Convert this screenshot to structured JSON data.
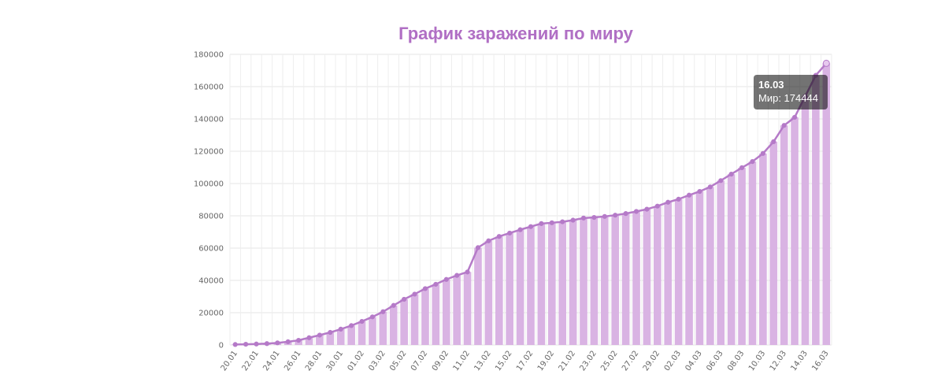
{
  "title": "График заражений по миру",
  "tooltip": {
    "date": "16.03",
    "value": "Мир: 174444"
  },
  "colors": {
    "bar": "#d9b3e3",
    "line": "#b57ac8",
    "title": "#b06fc4",
    "grid": "#e5e5e5"
  },
  "chart_data": {
    "type": "bar+line",
    "title": "График заражений по миру",
    "ylim": [
      0,
      180000
    ],
    "yticks": [
      0,
      20000,
      40000,
      60000,
      80000,
      100000,
      120000,
      140000,
      160000,
      180000
    ],
    "x_tick_labels": [
      "20.01",
      "22.01",
      "24.01",
      "26.01",
      "28.01",
      "30.01",
      "01.02",
      "03.02",
      "05.02",
      "07.02",
      "09.02",
      "11.02",
      "13.02",
      "15.02",
      "17.02",
      "19.02",
      "21.02",
      "23.02",
      "25.02",
      "27.02",
      "29.02",
      "02.03",
      "04.03",
      "06.03",
      "08.03",
      "10.03",
      "12.03",
      "14.03",
      "16.03"
    ],
    "grid": true,
    "series": [
      {
        "name": "Мир",
        "x": [
          "20.01",
          "21.01",
          "22.01",
          "23.01",
          "24.01",
          "25.01",
          "26.01",
          "27.01",
          "28.01",
          "29.01",
          "30.01",
          "31.01",
          "01.02",
          "02.02",
          "03.02",
          "04.02",
          "05.02",
          "06.02",
          "07.02",
          "08.02",
          "09.02",
          "10.02",
          "11.02",
          "12.02",
          "13.02",
          "14.02",
          "15.02",
          "16.02",
          "17.02",
          "18.02",
          "19.02",
          "20.02",
          "21.02",
          "22.02",
          "23.02",
          "24.02",
          "25.02",
          "26.02",
          "27.02",
          "28.02",
          "29.02",
          "01.03",
          "02.03",
          "03.03",
          "04.03",
          "05.03",
          "06.03",
          "07.03",
          "08.03",
          "09.03",
          "10.03",
          "11.03",
          "12.03",
          "13.03",
          "14.03",
          "15.03",
          "16.03"
        ],
        "values": [
          300,
          450,
          600,
          850,
          1300,
          2000,
          2900,
          4500,
          6100,
          7800,
          9800,
          12000,
          14600,
          17400,
          20600,
          24500,
          28300,
          31500,
          34900,
          37600,
          40600,
          43100,
          45200,
          60300,
          64500,
          67200,
          69300,
          71400,
          73300,
          75200,
          75700,
          76300,
          77300,
          78600,
          79000,
          79600,
          80400,
          81400,
          82700,
          84100,
          86000,
          88400,
          90300,
          92800,
          95100,
          97900,
          101800,
          105800,
          109800,
          113600,
          118600,
          125900,
          136000,
          141000,
          154000,
          167000,
          174444
        ]
      }
    ]
  }
}
